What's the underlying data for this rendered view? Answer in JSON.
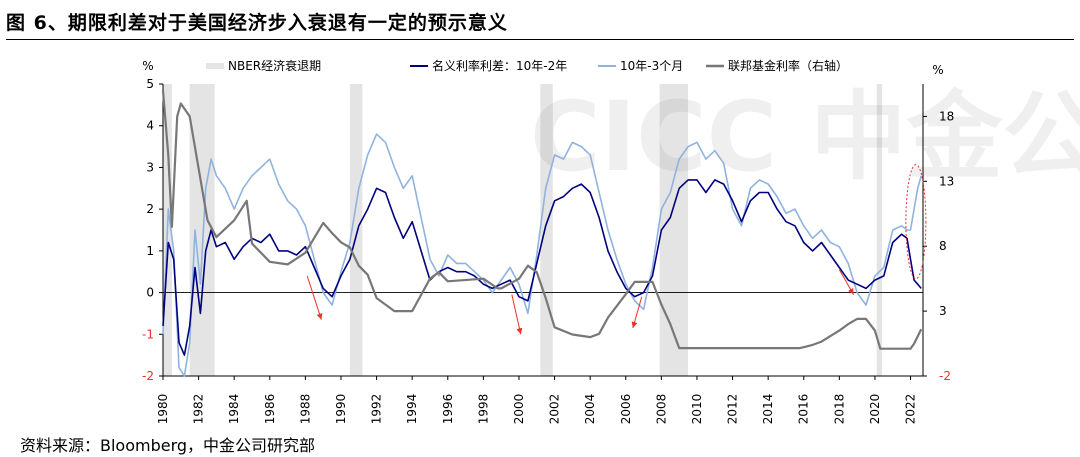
{
  "figure": {
    "title": "图 6、期限利差对于美国经济步入衰退有一定的预示意义",
    "source": "资料来源：Bloomberg，中金公司研究部",
    "watermark": "CICC 中金公司"
  },
  "chart_data": {
    "type": "line",
    "title": "图 6、期限利差对于美国经济步入衰退有一定的预示意义",
    "left_axis": {
      "unit": "%",
      "min": -2,
      "max": 5,
      "ticks": [
        -2,
        -1,
        0,
        1,
        2,
        3,
        4,
        5
      ]
    },
    "right_axis": {
      "unit": "%",
      "min": -2,
      "max": 20.5,
      "ticks": [
        -2,
        3,
        8,
        13,
        18
      ]
    },
    "x_axis": {
      "min": 1980,
      "max": 2022.7,
      "ticks": [
        1980,
        1982,
        1984,
        1986,
        1988,
        1990,
        1992,
        1994,
        1996,
        1998,
        2000,
        2002,
        2004,
        2006,
        2008,
        2010,
        2012,
        2014,
        2016,
        2018,
        2020,
        2022
      ]
    },
    "legend": [
      "NBER经济衰退期",
      "名义利率利差：10年-2年",
      "10年-3个月",
      "联邦基金利率（右轴）"
    ],
    "colors": {
      "recession": "#e4e4e4",
      "spread_10y2y": "#000080",
      "spread_10y3m": "#8fb3de",
      "fed_funds": "#777777",
      "arrow": "#e8322a",
      "ellipse": "#e8322a"
    },
    "recessions": [
      [
        1980.0,
        1980.5
      ],
      [
        1981.5,
        1982.9
      ],
      [
        1990.5,
        1991.2
      ],
      [
        2001.2,
        2001.9
      ],
      [
        2007.9,
        2009.5
      ],
      [
        2020.1,
        2020.4
      ]
    ],
    "series": [
      {
        "name": "名义利率利差：10年-2年",
        "axis": "left",
        "x": [
          1980.0,
          1980.3,
          1980.6,
          1980.9,
          1981.2,
          1981.5,
          1981.8,
          1982.1,
          1982.4,
          1982.7,
          1983.0,
          1983.5,
          1984.0,
          1984.5,
          1985.0,
          1985.5,
          1986.0,
          1986.5,
          1987.0,
          1987.5,
          1988.0,
          1988.5,
          1989.0,
          1989.5,
          1990.0,
          1990.5,
          1991.0,
          1991.5,
          1992.0,
          1992.5,
          1993.0,
          1993.5,
          1994.0,
          1994.5,
          1995.0,
          1995.5,
          1996.0,
          1996.5,
          1997.0,
          1997.5,
          1998.0,
          1998.5,
          1999.0,
          1999.5,
          2000.0,
          2000.5,
          2001.0,
          2001.5,
          2002.0,
          2002.5,
          2003.0,
          2003.5,
          2004.0,
          2004.5,
          2005.0,
          2005.5,
          2006.0,
          2006.5,
          2007.0,
          2007.5,
          2008.0,
          2008.5,
          2009.0,
          2009.5,
          2010.0,
          2010.5,
          2011.0,
          2011.5,
          2012.0,
          2012.5,
          2013.0,
          2013.5,
          2014.0,
          2014.5,
          2015.0,
          2015.5,
          2016.0,
          2016.5,
          2017.0,
          2017.5,
          2018.0,
          2018.5,
          2019.0,
          2019.5,
          2020.0,
          2020.5,
          2021.0,
          2021.5,
          2021.8,
          2022.0,
          2022.2,
          2022.4,
          2022.6
        ],
        "values": [
          -0.8,
          1.2,
          0.8,
          -1.2,
          -1.5,
          -0.8,
          0.6,
          -0.5,
          1.0,
          1.5,
          1.1,
          1.2,
          0.8,
          1.1,
          1.3,
          1.2,
          1.4,
          1.0,
          1.0,
          0.9,
          1.1,
          0.6,
          0.1,
          -0.1,
          0.4,
          0.8,
          1.6,
          2.0,
          2.5,
          2.4,
          1.8,
          1.3,
          1.7,
          1.0,
          0.3,
          0.5,
          0.6,
          0.5,
          0.5,
          0.4,
          0.2,
          0.1,
          0.2,
          0.3,
          -0.1,
          -0.2,
          0.7,
          1.6,
          2.2,
          2.3,
          2.5,
          2.6,
          2.4,
          1.8,
          1.0,
          0.5,
          0.1,
          -0.1,
          0.0,
          0.4,
          1.5,
          1.8,
          2.5,
          2.7,
          2.7,
          2.4,
          2.7,
          2.6,
          2.2,
          1.7,
          2.2,
          2.4,
          2.4,
          2.0,
          1.7,
          1.6,
          1.2,
          1.0,
          1.2,
          0.9,
          0.6,
          0.3,
          0.2,
          0.1,
          0.3,
          0.4,
          1.2,
          1.4,
          1.3,
          0.8,
          0.3,
          0.2,
          0.1
        ]
      },
      {
        "name": "10年-3个月",
        "axis": "left",
        "x": [
          1980.0,
          1980.3,
          1980.6,
          1980.9,
          1981.2,
          1981.5,
          1981.8,
          1982.1,
          1982.4,
          1982.7,
          1983.0,
          1983.5,
          1984.0,
          1984.5,
          1985.0,
          1985.5,
          1986.0,
          1986.5,
          1987.0,
          1987.5,
          1988.0,
          1988.5,
          1989.0,
          1989.5,
          1990.0,
          1990.5,
          1991.0,
          1991.5,
          1992.0,
          1992.5,
          1993.0,
          1993.5,
          1994.0,
          1994.5,
          1995.0,
          1995.5,
          1996.0,
          1996.5,
          1997.0,
          1997.5,
          1998.0,
          1998.5,
          1999.0,
          1999.5,
          2000.0,
          2000.5,
          2001.0,
          2001.5,
          2002.0,
          2002.5,
          2003.0,
          2003.5,
          2004.0,
          2004.5,
          2005.0,
          2005.5,
          2006.0,
          2006.5,
          2007.0,
          2007.5,
          2008.0,
          2008.5,
          2009.0,
          2009.5,
          2010.0,
          2010.5,
          2011.0,
          2011.5,
          2012.0,
          2012.5,
          2013.0,
          2013.5,
          2014.0,
          2014.5,
          2015.0,
          2015.5,
          2016.0,
          2016.5,
          2017.0,
          2017.5,
          2018.0,
          2018.5,
          2019.0,
          2019.5,
          2020.0,
          2020.5,
          2021.0,
          2021.5,
          2021.8,
          2022.0,
          2022.2,
          2022.4,
          2022.6
        ],
        "values": [
          -1.0,
          2.0,
          1.0,
          -1.8,
          -2.0,
          -1.2,
          1.5,
          0.2,
          2.5,
          3.2,
          2.8,
          2.5,
          2.0,
          2.5,
          2.8,
          3.0,
          3.2,
          2.6,
          2.2,
          2.0,
          1.6,
          0.8,
          0.0,
          -0.3,
          0.5,
          1.2,
          2.5,
          3.3,
          3.8,
          3.6,
          3.0,
          2.5,
          2.8,
          1.8,
          0.8,
          0.4,
          0.9,
          0.7,
          0.7,
          0.5,
          0.3,
          0.0,
          0.3,
          0.6,
          0.2,
          -0.5,
          0.9,
          2.5,
          3.3,
          3.2,
          3.6,
          3.5,
          3.3,
          2.4,
          1.5,
          0.8,
          0.2,
          -0.2,
          -0.4,
          0.6,
          2.0,
          2.4,
          3.2,
          3.5,
          3.6,
          3.2,
          3.4,
          3.1,
          2.0,
          1.6,
          2.5,
          2.7,
          2.6,
          2.3,
          1.9,
          2.0,
          1.6,
          1.3,
          1.5,
          1.2,
          1.1,
          0.7,
          0.0,
          -0.3,
          0.4,
          0.6,
          1.5,
          1.6,
          1.5,
          1.5,
          2.0,
          2.5,
          2.8
        ]
      },
      {
        "name": "联邦基金利率（右轴）",
        "axis": "right",
        "x": [
          1980.0,
          1980.3,
          1980.5,
          1980.8,
          1981.0,
          1981.5,
          1982.0,
          1982.5,
          1983.0,
          1984.0,
          1984.7,
          1985.0,
          1986.0,
          1987.0,
          1988.0,
          1989.0,
          1989.5,
          1990.0,
          1990.5,
          1991.0,
          1991.5,
          1992.0,
          1993.0,
          1994.0,
          1995.0,
          1995.5,
          1996.0,
          1998.0,
          1998.8,
          1999.0,
          2000.0,
          2000.5,
          2001.0,
          2001.5,
          2002.0,
          2003.0,
          2004.0,
          2004.5,
          2005.0,
          2006.0,
          2006.5,
          2007.5,
          2008.0,
          2008.5,
          2009.0,
          2015.8,
          2016.5,
          2017.0,
          2018.0,
          2018.5,
          2019.0,
          2019.5,
          2020.0,
          2020.3,
          2022.0,
          2022.2,
          2022.6
        ],
        "values": [
          20.0,
          15.0,
          9.5,
          18.0,
          19.0,
          18.0,
          14.0,
          10.0,
          8.7,
          10.0,
          11.5,
          8.2,
          6.8,
          6.6,
          7.5,
          9.8,
          9.0,
          8.3,
          7.9,
          6.5,
          5.8,
          4.0,
          3.0,
          3.0,
          5.5,
          6.0,
          5.3,
          5.5,
          4.75,
          4.75,
          5.5,
          6.5,
          6.0,
          4.0,
          1.75,
          1.2,
          1.0,
          1.25,
          2.5,
          4.3,
          5.25,
          5.25,
          3.5,
          2.0,
          0.15,
          0.15,
          0.4,
          0.65,
          1.5,
          2.0,
          2.4,
          2.4,
          1.5,
          0.1,
          0.1,
          0.5,
          1.6
        ]
      }
    ],
    "annotations": [
      {
        "type": "arrow",
        "from": [
          1988.1,
          0.4
        ],
        "to": [
          1988.9,
          -0.65
        ]
      },
      {
        "type": "arrow",
        "from": [
          1999.6,
          -0.05
        ],
        "to": [
          2000.1,
          -1.0
        ]
      },
      {
        "type": "arrow",
        "from": [
          2006.9,
          -0.1
        ],
        "to": [
          2006.4,
          -0.85
        ]
      },
      {
        "type": "arrow",
        "from": [
          2018.0,
          0.55
        ],
        "to": [
          2018.8,
          -0.05
        ]
      },
      {
        "type": "ellipse",
        "center": [
          2022.3,
          1.7
        ],
        "note": "dotted red highlight of latest spreads"
      }
    ]
  }
}
